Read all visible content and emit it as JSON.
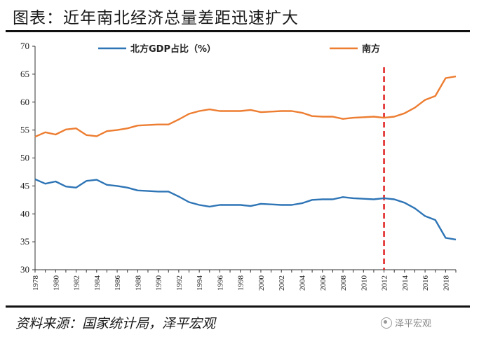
{
  "header": {
    "title": "图表：近年南北经济总量差距迅速扩大"
  },
  "footer": {
    "source": "资料来源：国家统计局，泽平宏观",
    "watermark": "泽平宏观"
  },
  "chart_data": {
    "type": "line",
    "x": [
      1978,
      1979,
      1980,
      1981,
      1982,
      1983,
      1984,
      1985,
      1986,
      1987,
      1988,
      1989,
      1990,
      1991,
      1992,
      1993,
      1994,
      1995,
      1996,
      1997,
      1998,
      1999,
      2000,
      2001,
      2002,
      2003,
      2004,
      2005,
      2006,
      2007,
      2008,
      2009,
      2010,
      2011,
      2012,
      2013,
      2014,
      2015,
      2016,
      2017,
      2018,
      2019
    ],
    "x_tick_labels": [
      "1978",
      "1980",
      "1982",
      "1984",
      "1986",
      "1988",
      "1990",
      "1992",
      "1994",
      "1996",
      "1998",
      "2000",
      "2002",
      "2004",
      "2006",
      "2008",
      "2010",
      "2012",
      "2014",
      "2016",
      "2018"
    ],
    "ylim": [
      30,
      70
    ],
    "y_ticks": [
      30,
      35,
      40,
      45,
      50,
      55,
      60,
      65,
      70
    ],
    "series": [
      {
        "name": "北方GDP占比（%）",
        "color": "#2e75b6",
        "values": [
          46.2,
          45.4,
          45.8,
          44.9,
          44.7,
          45.9,
          46.1,
          45.2,
          45.0,
          44.7,
          44.2,
          44.1,
          44.0,
          44.0,
          43.1,
          42.1,
          41.6,
          41.3,
          41.6,
          41.6,
          41.6,
          41.4,
          41.8,
          41.7,
          41.6,
          41.6,
          41.9,
          42.5,
          42.6,
          42.6,
          43.0,
          42.8,
          42.7,
          42.6,
          42.8,
          42.6,
          42.0,
          41.0,
          39.6,
          38.9,
          35.7,
          35.4
        ]
      },
      {
        "name": "南方",
        "color": "#ed7d31",
        "values": [
          53.8,
          54.6,
          54.2,
          55.1,
          55.3,
          54.1,
          53.9,
          54.8,
          55.0,
          55.3,
          55.8,
          55.9,
          56.0,
          56.0,
          56.9,
          57.9,
          58.4,
          58.7,
          58.4,
          58.4,
          58.4,
          58.6,
          58.2,
          58.3,
          58.4,
          58.4,
          58.1,
          57.5,
          57.4,
          57.4,
          57.0,
          57.2,
          57.3,
          57.4,
          57.2,
          57.4,
          58.0,
          59.0,
          60.4,
          61.1,
          64.3,
          64.6
        ]
      }
    ],
    "vertical_marker": {
      "x": 2012,
      "style": "dashed",
      "color": "#e02020"
    },
    "legend_position": "top",
    "grid": false
  }
}
